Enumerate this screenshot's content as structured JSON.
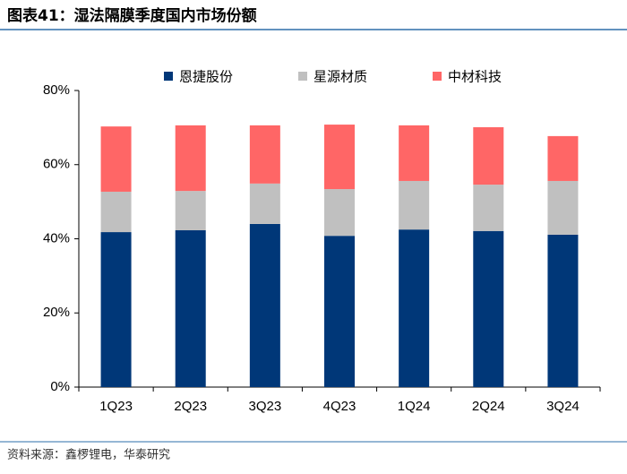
{
  "chart_data": {
    "type": "stacked_bar",
    "title": "图表41：湿法隔膜季度国内市场份额",
    "source": "资料来源：鑫椤锂电，华泰研究",
    "categories": [
      "1Q23",
      "2Q23",
      "3Q23",
      "4Q23",
      "1Q24",
      "2Q24",
      "3Q24"
    ],
    "series": [
      {
        "name": "恩捷股份",
        "color": "#003778",
        "values": [
          41.8,
          42.3,
          44.0,
          40.8,
          42.5,
          42.1,
          41.1
        ]
      },
      {
        "name": "星源材质",
        "color": "#c0c0c0",
        "values": [
          10.9,
          10.6,
          10.9,
          12.6,
          13.1,
          12.5,
          14.5
        ]
      },
      {
        "name": "中材科技",
        "color": "#ff6666",
        "values": [
          17.6,
          17.7,
          15.7,
          17.4,
          15.0,
          15.5,
          12.1
        ]
      }
    ],
    "ylim": [
      0,
      80
    ],
    "yticks": [
      {
        "value": 0,
        "label": "0%"
      },
      {
        "value": 20,
        "label": "20%"
      },
      {
        "value": 40,
        "label": "40%"
      },
      {
        "value": 60,
        "label": "60%"
      },
      {
        "value": 80,
        "label": "80%"
      }
    ],
    "legend": "top"
  }
}
